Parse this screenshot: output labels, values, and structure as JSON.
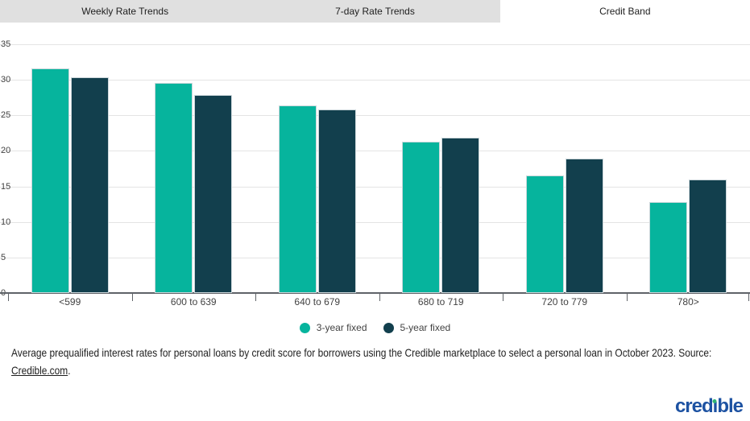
{
  "tabs": [
    {
      "label": "Weekly Rate Trends",
      "active": false
    },
    {
      "label": "7-day Rate Trends",
      "active": false
    },
    {
      "label": "Credit Band",
      "active": true
    }
  ],
  "chart_data": {
    "type": "bar",
    "title": "",
    "xlabel": "",
    "ylabel": "",
    "categories": [
      "<599",
      "600 to 639",
      "640 to 679",
      "680 to 719",
      "720 to 779",
      "780>"
    ],
    "series": [
      {
        "name": "3-year fixed",
        "color": "#06b49d",
        "values": [
          31.6,
          29.6,
          26.4,
          21.3,
          16.5,
          12.8
        ]
      },
      {
        "name": "5-year fixed",
        "color": "#123f4d",
        "values": [
          30.4,
          27.9,
          25.8,
          21.9,
          18.9,
          16.0
        ]
      }
    ],
    "ylim": [
      0,
      35
    ],
    "yticks": [
      0,
      5,
      10,
      15,
      20,
      25,
      30,
      35
    ],
    "grid": true,
    "legend_position": "bottom"
  },
  "caption": {
    "prefix": "Average prequalified interest rates for personal loans by credit score for borrowers using the Credible marketplace to select a personal loan in October 2023. Source: ",
    "link_text": "Credible.com",
    "suffix": "."
  },
  "logo": {
    "text": "credible",
    "part_before_i": "cred",
    "i_stem": "ı",
    "part_after_i": "ble"
  },
  "colors": {
    "accent_teal": "#06b49d",
    "accent_dark_teal": "#123f4d",
    "tab_inactive_bg": "#e0e0e0",
    "tab_active_bg": "#ffffff",
    "gridline": "#e4e4e4",
    "axis": "#5f6368",
    "logo_blue": "#1d52a2",
    "logo_dot_green": "#2fb573"
  }
}
